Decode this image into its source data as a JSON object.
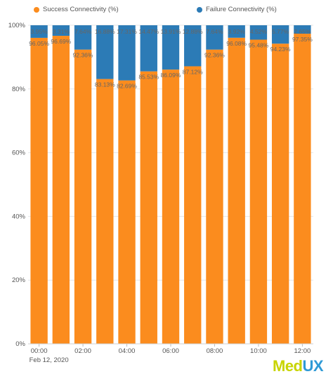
{
  "chart_data": {
    "type": "bar",
    "stacked": true,
    "categories": [
      "00:00",
      "01:00",
      "02:00",
      "03:00",
      "04:00",
      "05:00",
      "06:00",
      "07:00",
      "08:00",
      "09:00",
      "10:00",
      "11:00",
      "12:00"
    ],
    "tick_labels": [
      "00:00",
      "",
      "02:00",
      "",
      "04:00",
      "",
      "06:00",
      "",
      "08:00",
      "",
      "10:00",
      "",
      "12:00"
    ],
    "date_label": "Feb 12, 2020",
    "series": [
      {
        "name": "Success Connectivity (%)",
        "color": "#fb8c1e",
        "values": [
          96.05,
          96.69,
          92.36,
          83.13,
          82.69,
          85.53,
          86.09,
          87.12,
          92.36,
          96.08,
          95.48,
          94.23,
          97.35
        ],
        "labels": [
          "96.05%",
          "96.69%",
          "92.36%",
          "83.13%",
          "82.69%",
          "85.53%",
          "86.09%",
          "87.12%",
          "92.36%",
          "96.08%",
          "95.48%",
          "94.23%",
          "97.35%"
        ]
      },
      {
        "name": "Failure Connectivity (%)",
        "color": "#2c7bb6",
        "values": [
          3.95,
          3.31,
          7.64,
          16.88,
          17.31,
          14.47,
          13.91,
          12.88,
          7.64,
          3.92,
          4.52,
          5.77,
          2.65
        ],
        "labels": [
          "3.95%",
          "3.31%",
          "7.64%",
          "16.88%",
          "17.31%",
          "14.47%",
          "13.91%",
          "12.88%",
          "7.64%",
          "3.92%",
          "4.52%",
          "5.77%",
          "2.65%"
        ]
      }
    ],
    "yticks": [
      "0%",
      "20%",
      "40%",
      "60%",
      "80%",
      "100%"
    ],
    "ylim": [
      0,
      100
    ],
    "title": "",
    "xlabel": "",
    "ylabel": "",
    "grid": true,
    "legend": "top-center"
  },
  "logo": {
    "part1": "Med",
    "part2": "UX"
  }
}
